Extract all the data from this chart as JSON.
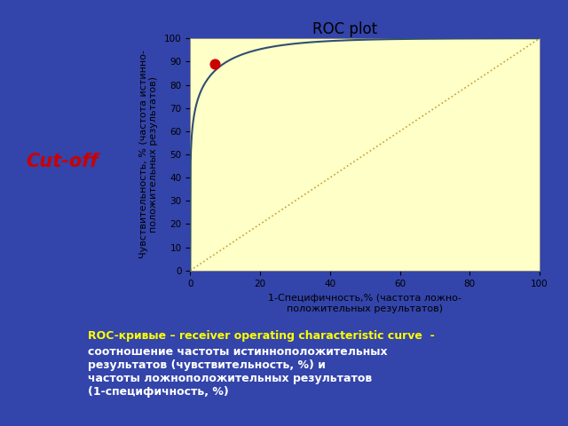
{
  "title": "ROC plot",
  "xlabel": "1-Специфичность,% (частота ложно-\nположительных результатов)",
  "ylabel": "Чувствительность, % (частота истинно-\nположительных результатов)",
  "xlim": [
    0,
    100
  ],
  "ylim": [
    0,
    100
  ],
  "xticks": [
    0,
    20,
    40,
    60,
    80,
    100
  ],
  "yticks": [
    0,
    10,
    20,
    30,
    40,
    50,
    60,
    70,
    80,
    90,
    100
  ],
  "plot_bg": "#FFFFC8",
  "chart_panel_bg": "#FFFFFF",
  "roc_color": "#2F4F6F",
  "diagonal_color": "#C8A030",
  "cutoff_x": 7,
  "cutoff_y": 89,
  "cutoff_color": "#CC0000",
  "slide_bg": "#3344AA",
  "cutoff_label": "Cut-off",
  "cutoff_label_color": "#CC0000",
  "bottom_text_roc": "ROC-кривые – receiver operating characteristic curve  -",
  "bottom_text_rest": "соотношение частоты истинноположительных\nрезультатов (чувствительность, %) и\nчастоты ложноположительных результатов\n(1-специфичность, %)",
  "bottom_text_roc_color": "#FFFF00",
  "bottom_text_rest_color": "#FFFFFF"
}
